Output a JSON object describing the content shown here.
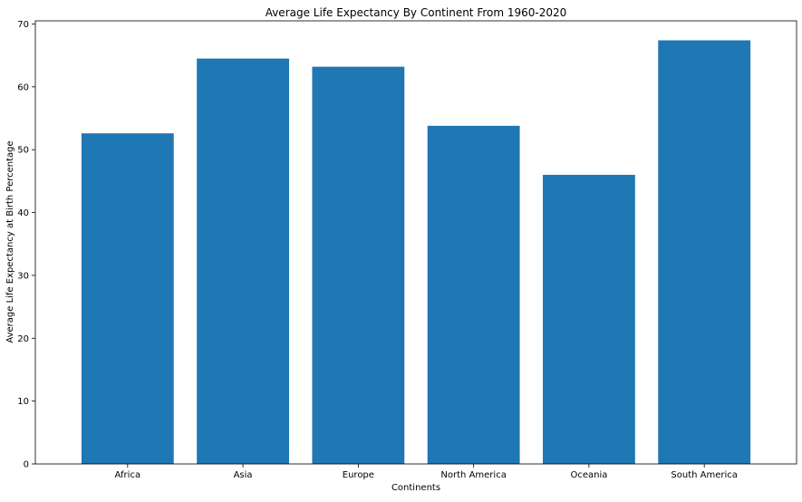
{
  "chart_data": {
    "type": "bar",
    "title": "Average Life Expectancy By Continent From 1960-2020",
    "xlabel": "Continents",
    "ylabel": "Average Life Expectancy at Birth Percentage",
    "categories": [
      "Africa",
      "Asia",
      "Europe",
      "North America",
      "Oceania",
      "South America"
    ],
    "values": [
      52.6,
      64.5,
      63.2,
      53.8,
      46.0,
      67.4
    ],
    "ylim": [
      0,
      70.5
    ],
    "yticks": [
      0,
      10,
      20,
      30,
      40,
      50,
      60,
      70
    ],
    "grid": false,
    "legend": "none",
    "bar_color": "#1f77b4"
  }
}
